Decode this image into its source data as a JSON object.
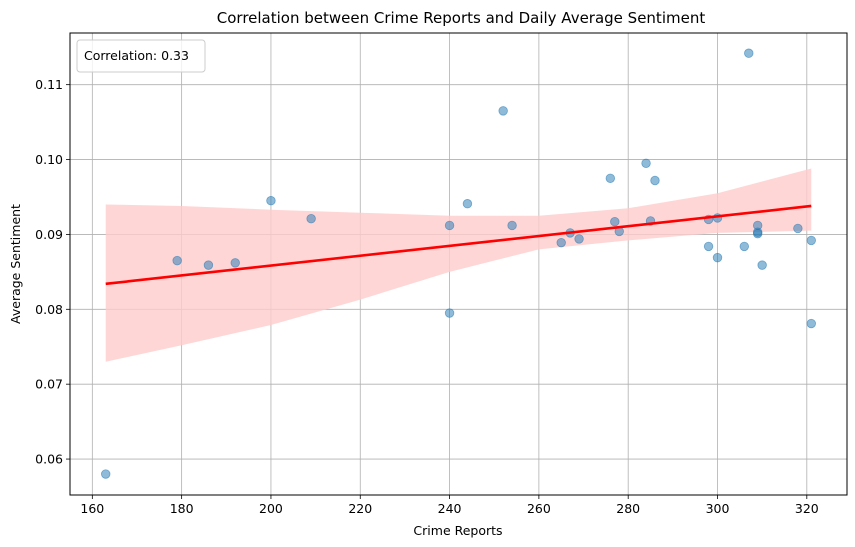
{
  "chart_data": {
    "type": "scatter",
    "title": "Correlation between Crime Reports and Daily Average Sentiment",
    "xlabel": "Crime Reports",
    "ylabel": "Average Sentiment",
    "xlim": [
      155,
      329
    ],
    "ylim": [
      0.0552,
      0.1169
    ],
    "xticks": [
      160,
      180,
      200,
      220,
      240,
      260,
      280,
      300,
      320
    ],
    "yticks": [
      0.06,
      0.07,
      0.08,
      0.09,
      0.1,
      0.11
    ],
    "grid": true,
    "annotation": "Correlation: 0.33",
    "annotation_position": "top-left",
    "colors": {
      "points": "#1f77b4",
      "regression_line": "#ff0000",
      "confidence_band": "#ffcccc"
    },
    "points": [
      {
        "x": 163,
        "y": 0.058
      },
      {
        "x": 179,
        "y": 0.0865
      },
      {
        "x": 186,
        "y": 0.0859
      },
      {
        "x": 192,
        "y": 0.0862
      },
      {
        "x": 200,
        "y": 0.0945
      },
      {
        "x": 209,
        "y": 0.0921
      },
      {
        "x": 240,
        "y": 0.0912
      },
      {
        "x": 240,
        "y": 0.0795
      },
      {
        "x": 244,
        "y": 0.0941
      },
      {
        "x": 252,
        "y": 0.1065
      },
      {
        "x": 254,
        "y": 0.0912
      },
      {
        "x": 265,
        "y": 0.0889
      },
      {
        "x": 267,
        "y": 0.0902
      },
      {
        "x": 269,
        "y": 0.0894
      },
      {
        "x": 276,
        "y": 0.0975
      },
      {
        "x": 277,
        "y": 0.0917
      },
      {
        "x": 278,
        "y": 0.0904
      },
      {
        "x": 284,
        "y": 0.0995
      },
      {
        "x": 285,
        "y": 0.0918
      },
      {
        "x": 286,
        "y": 0.0972
      },
      {
        "x": 298,
        "y": 0.092
      },
      {
        "x": 298,
        "y": 0.0884
      },
      {
        "x": 300,
        "y": 0.0922
      },
      {
        "x": 300,
        "y": 0.0869
      },
      {
        "x": 306,
        "y": 0.0884
      },
      {
        "x": 307,
        "y": 0.1142
      },
      {
        "x": 309,
        "y": 0.0912
      },
      {
        "x": 309,
        "y": 0.0903
      },
      {
        "x": 309,
        "y": 0.0901
      },
      {
        "x": 310,
        "y": 0.0859
      },
      {
        "x": 318,
        "y": 0.0908
      },
      {
        "x": 321,
        "y": 0.0892
      },
      {
        "x": 321,
        "y": 0.0781
      }
    ],
    "regression": {
      "x": [
        163,
        321
      ],
      "y": [
        0.0834,
        0.0938
      ]
    },
    "confidence_band": {
      "x": [
        163,
        180,
        200,
        220,
        240,
        260,
        280,
        300,
        321
      ],
      "upper": [
        0.094,
        0.0938,
        0.0933,
        0.0929,
        0.0925,
        0.0925,
        0.0935,
        0.0955,
        0.0988
      ],
      "lower": [
        0.073,
        0.0752,
        0.0779,
        0.0813,
        0.085,
        0.088,
        0.0892,
        0.0902,
        0.0905
      ]
    }
  }
}
